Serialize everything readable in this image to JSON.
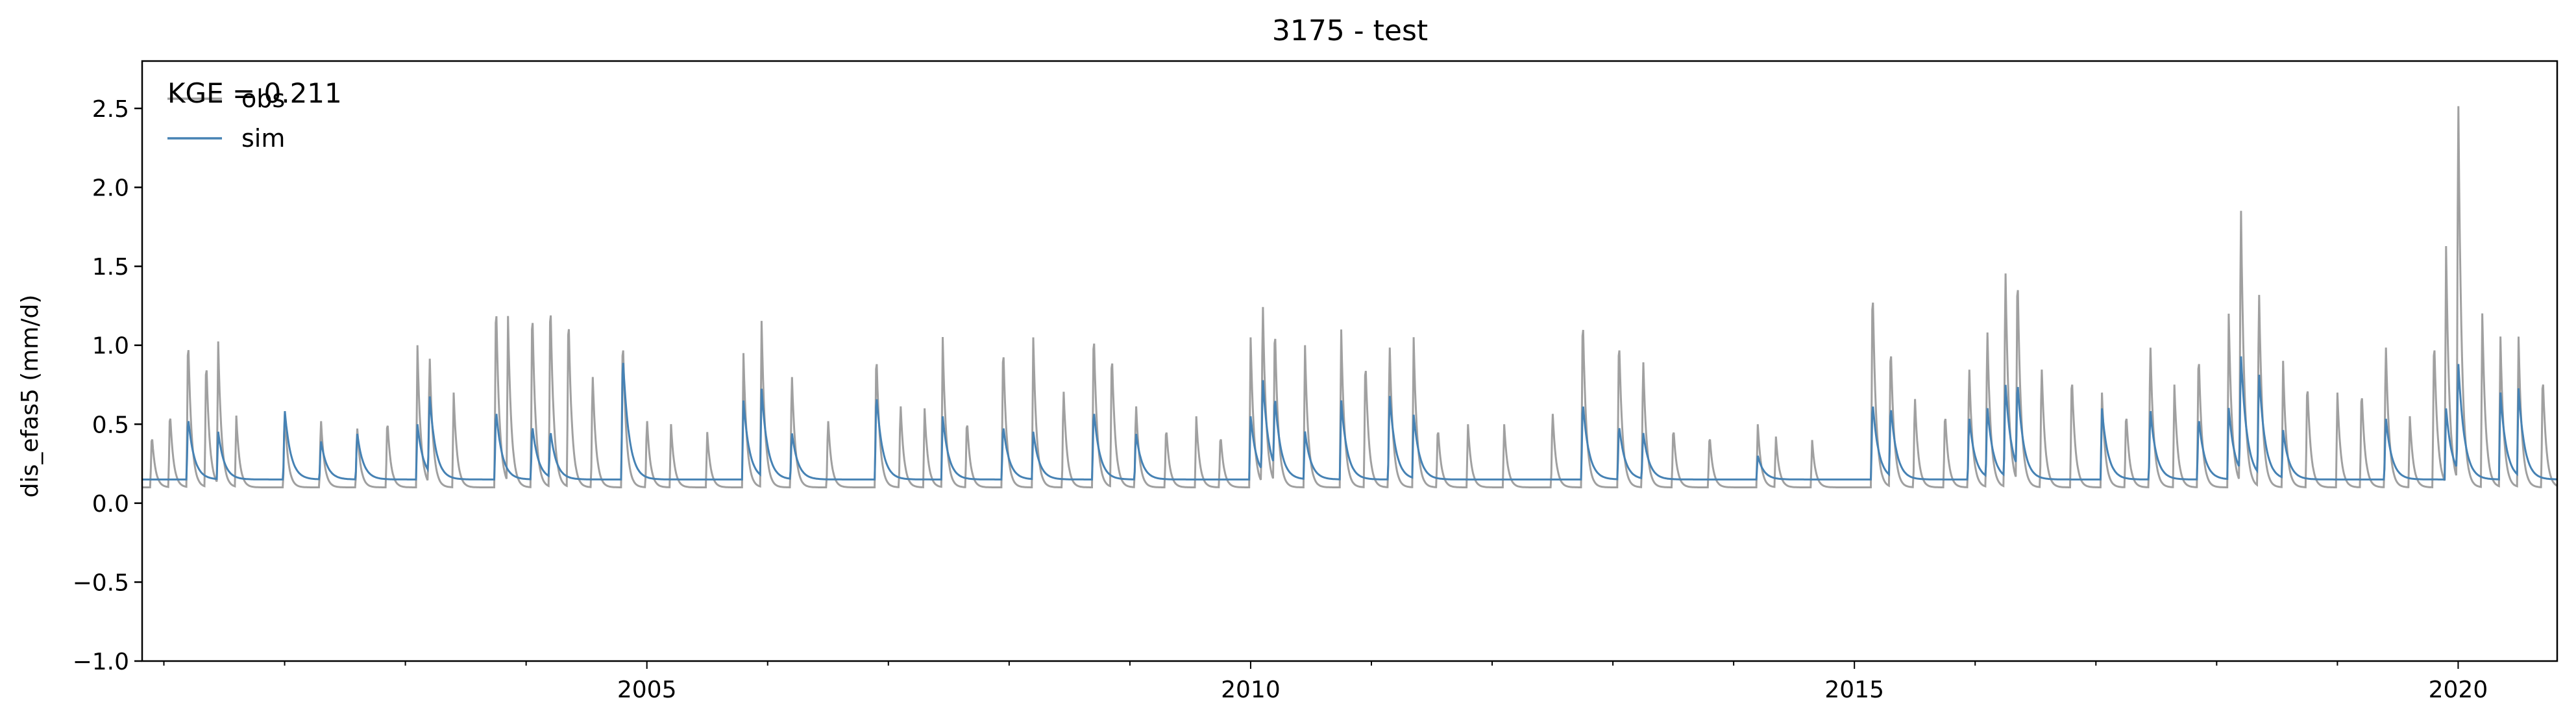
{
  "chart_data": {
    "type": "line",
    "title": "3175 - test",
    "xlabel": "",
    "ylabel": "dis_efas5 (mm/d)",
    "xlim": [
      2000.82,
      2020.82
    ],
    "ylim": [
      -1.0,
      2.8
    ],
    "x_ticks": [
      2005,
      2010,
      2015,
      2020
    ],
    "x_tick_labels": [
      "2005",
      "2010",
      "2015",
      "2020"
    ],
    "y_ticks": [
      -1.0,
      -0.5,
      0.0,
      0.5,
      1.0,
      1.5,
      2.0,
      2.5
    ],
    "y_tick_labels": [
      "−1.0",
      "−0.5",
      "0.0",
      "0.5",
      "1.0",
      "1.5",
      "2.0",
      "2.5"
    ],
    "grid": false,
    "legend_position": "upper-left",
    "annotation": "KGE = 0.211",
    "series": [
      {
        "name": "obs",
        "color": "#a0a0a0",
        "baseline": 0.1,
        "peaks": [
          [
            2000.9,
            0.45
          ],
          [
            2001.05,
            0.6
          ],
          [
            2001.2,
            1.1
          ],
          [
            2001.35,
            0.95
          ],
          [
            2001.45,
            1.0
          ],
          [
            2001.6,
            0.55
          ],
          [
            2002.0,
            0.6
          ],
          [
            2002.3,
            0.55
          ],
          [
            2002.6,
            0.5
          ],
          [
            2002.85,
            0.55
          ],
          [
            2003.1,
            1.0
          ],
          [
            2003.2,
            0.95
          ],
          [
            2003.4,
            0.7
          ],
          [
            2003.75,
            1.35
          ],
          [
            2003.85,
            1.15
          ],
          [
            2004.05,
            1.3
          ],
          [
            2004.2,
            1.35
          ],
          [
            2004.35,
            1.25
          ],
          [
            2004.55,
            0.85
          ],
          [
            2004.8,
            1.1
          ],
          [
            2005.0,
            0.55
          ],
          [
            2005.2,
            0.5
          ],
          [
            2005.5,
            0.45
          ],
          [
            2005.8,
            0.95
          ],
          [
            2005.95,
            1.15
          ],
          [
            2006.2,
            0.85
          ],
          [
            2006.5,
            0.55
          ],
          [
            2006.9,
            1.0
          ],
          [
            2007.1,
            0.65
          ],
          [
            2007.3,
            0.6
          ],
          [
            2007.45,
            1.05
          ],
          [
            2007.65,
            0.55
          ],
          [
            2007.95,
            1.05
          ],
          [
            2008.2,
            1.05
          ],
          [
            2008.45,
            0.75
          ],
          [
            2008.7,
            1.15
          ],
          [
            2008.85,
            1.0
          ],
          [
            2009.05,
            0.65
          ],
          [
            2009.3,
            0.5
          ],
          [
            2009.55,
            0.55
          ],
          [
            2009.75,
            0.45
          ],
          [
            2010.0,
            1.05
          ],
          [
            2010.1,
            1.3
          ],
          [
            2010.2,
            1.15
          ],
          [
            2010.45,
            1.0
          ],
          [
            2010.75,
            1.1
          ],
          [
            2010.95,
            0.95
          ],
          [
            2011.15,
            1.05
          ],
          [
            2011.35,
            1.05
          ],
          [
            2011.55,
            0.5
          ],
          [
            2011.8,
            0.5
          ],
          [
            2012.1,
            0.5
          ],
          [
            2012.5,
            0.6
          ],
          [
            2012.75,
            1.25
          ],
          [
            2013.05,
            1.1
          ],
          [
            2013.25,
            0.95
          ],
          [
            2013.5,
            0.5
          ],
          [
            2013.8,
            0.45
          ],
          [
            2014.2,
            0.5
          ],
          [
            2014.35,
            0.42
          ],
          [
            2014.65,
            0.4
          ],
          [
            2015.15,
            1.45
          ],
          [
            2015.3,
            1.05
          ],
          [
            2015.5,
            0.7
          ],
          [
            2015.75,
            0.6
          ],
          [
            2015.95,
            0.9
          ],
          [
            2016.1,
            1.15
          ],
          [
            2016.25,
            1.55
          ],
          [
            2016.35,
            1.5
          ],
          [
            2016.55,
            0.9
          ],
          [
            2016.8,
            0.85
          ],
          [
            2017.05,
            0.7
          ],
          [
            2017.25,
            0.6
          ],
          [
            2017.45,
            1.05
          ],
          [
            2017.65,
            0.75
          ],
          [
            2017.85,
            1.0
          ],
          [
            2018.1,
            1.2
          ],
          [
            2018.2,
            1.95
          ],
          [
            2018.35,
            1.4
          ],
          [
            2018.55,
            0.9
          ],
          [
            2018.75,
            0.8
          ],
          [
            2019.0,
            0.7
          ],
          [
            2019.2,
            0.75
          ],
          [
            2019.4,
            1.05
          ],
          [
            2019.6,
            0.55
          ],
          [
            2019.8,
            1.1
          ],
          [
            2019.9,
            1.6
          ],
          [
            2020.0,
            2.65
          ],
          [
            2020.2,
            1.2
          ],
          [
            2020.35,
            1.05
          ],
          [
            2020.5,
            1.05
          ],
          [
            2020.7,
            0.85
          ]
        ]
      },
      {
        "name": "sim",
        "color": "#4682b4",
        "baseline": 0.15,
        "peaks": [
          [
            2001.2,
            0.55
          ],
          [
            2001.45,
            0.45
          ],
          [
            2002.0,
            0.6
          ],
          [
            2002.3,
            0.4
          ],
          [
            2002.6,
            0.45
          ],
          [
            2003.1,
            0.5
          ],
          [
            2003.2,
            0.65
          ],
          [
            2003.75,
            0.6
          ],
          [
            2004.05,
            0.5
          ],
          [
            2004.2,
            0.45
          ],
          [
            2004.8,
            0.95
          ],
          [
            2005.8,
            0.65
          ],
          [
            2005.95,
            0.7
          ],
          [
            2006.2,
            0.45
          ],
          [
            2006.9,
            0.7
          ],
          [
            2007.45,
            0.55
          ],
          [
            2007.95,
            0.5
          ],
          [
            2008.2,
            0.45
          ],
          [
            2008.7,
            0.6
          ],
          [
            2009.05,
            0.45
          ],
          [
            2010.0,
            0.55
          ],
          [
            2010.1,
            0.75
          ],
          [
            2010.2,
            0.6
          ],
          [
            2010.45,
            0.45
          ],
          [
            2010.75,
            0.65
          ],
          [
            2011.15,
            0.7
          ],
          [
            2011.35,
            0.55
          ],
          [
            2012.75,
            0.65
          ],
          [
            2013.05,
            0.5
          ],
          [
            2013.25,
            0.45
          ],
          [
            2014.2,
            0.3
          ],
          [
            2015.15,
            0.65
          ],
          [
            2015.3,
            0.6
          ],
          [
            2015.95,
            0.55
          ],
          [
            2016.1,
            0.6
          ],
          [
            2016.25,
            0.75
          ],
          [
            2016.35,
            0.7
          ],
          [
            2017.05,
            0.6
          ],
          [
            2017.45,
            0.6
          ],
          [
            2017.85,
            0.55
          ],
          [
            2018.1,
            0.6
          ],
          [
            2018.2,
            0.9
          ],
          [
            2018.35,
            0.8
          ],
          [
            2018.55,
            0.45
          ],
          [
            2019.4,
            0.55
          ],
          [
            2019.9,
            0.6
          ],
          [
            2020.0,
            0.85
          ],
          [
            2020.35,
            0.7
          ],
          [
            2020.5,
            0.7
          ]
        ]
      }
    ]
  }
}
